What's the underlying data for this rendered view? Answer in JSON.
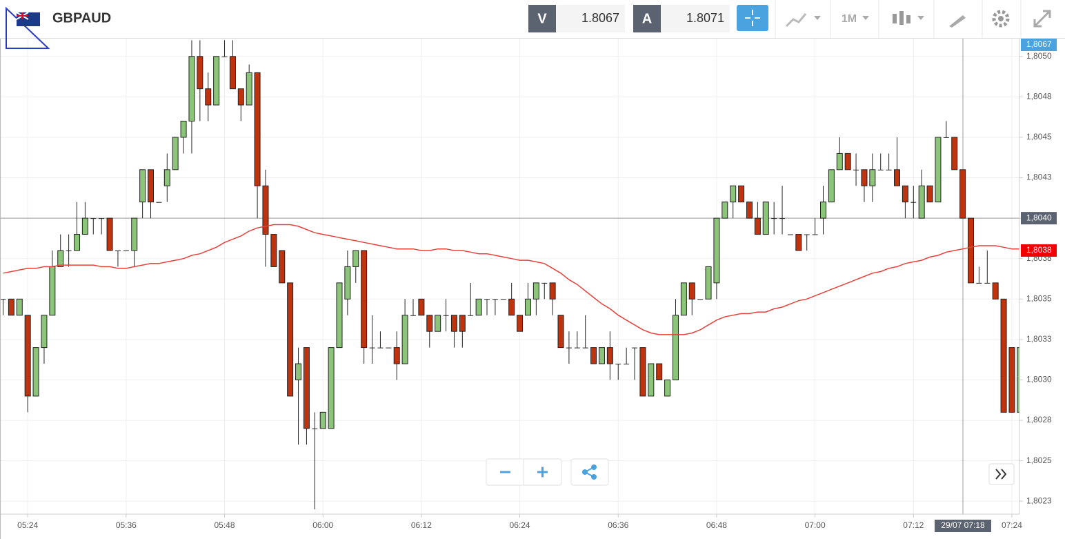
{
  "header": {
    "symbol": "GBPAUD",
    "bid_label": "V",
    "bid": 1.8067,
    "ask_label": "A",
    "ask": 1.8071,
    "timeframe": "1M"
  },
  "chart_data": {
    "type": "candlestick",
    "up_color": "#8cc47a",
    "down_color": "#c0330f",
    "categories": [
      null,
      null,
      null,
      "05:24",
      null,
      null,
      null,
      null,
      null,
      null,
      null,
      null,
      null,
      null,
      null,
      "05:36",
      null,
      null,
      null,
      null,
      null,
      null,
      null,
      null,
      null,
      null,
      null,
      "05:48",
      null,
      null,
      null,
      null,
      null,
      null,
      null,
      null,
      null,
      null,
      null,
      "06:00",
      null,
      null,
      null,
      null,
      null,
      null,
      null,
      null,
      null,
      null,
      null,
      "06:12",
      null,
      null,
      null,
      null,
      null,
      null,
      null,
      null,
      null,
      null,
      null,
      "06:24",
      null,
      null,
      null,
      null,
      null,
      null,
      null,
      null,
      null,
      null,
      null,
      "06:36",
      null,
      null,
      null,
      null,
      null,
      null,
      null,
      null,
      null,
      null,
      null,
      "06:48",
      null,
      null,
      null,
      null,
      null,
      null,
      null,
      null,
      null,
      null,
      null,
      "07:00",
      null,
      null,
      null,
      null,
      null,
      null,
      null,
      null,
      null,
      null,
      null,
      "07:12",
      null,
      null,
      null,
      null,
      null,
      null,
      null,
      null,
      null,
      null,
      null,
      "07:24",
      null
    ],
    "open": [
      1.8035,
      1.8035,
      1.8034,
      1.8034,
      1.8029,
      1.8032,
      1.8034,
      1.8037,
      1.8038,
      1.8038,
      1.8039,
      1.804,
      1.804,
      1.804,
      1.8038,
      1.8038,
      1.8038,
      1.8041,
      1.8043,
      1.8041,
      1.8042,
      1.8043,
      1.8045,
      1.8046,
      1.805,
      1.8048,
      1.8047,
      1.805,
      1.805,
      1.8048,
      1.8047,
      1.8049,
      1.8042,
      1.8039,
      1.8038,
      1.8036,
      1.803,
      1.8032,
      1.8027,
      1.8027,
      1.8027,
      1.8032,
      1.8035,
      1.8037,
      1.8038,
      1.8032,
      1.8032,
      1.8032,
      1.8032,
      1.8031,
      1.8034,
      1.8035,
      1.8034,
      1.8033,
      1.8034,
      1.8034,
      1.8034,
      1.8034,
      1.8034,
      1.8035,
      1.8035,
      1.8035,
      1.8035,
      1.8034,
      1.8034,
      1.8035,
      1.8036,
      1.8036,
      1.8034,
      1.8032,
      1.8032,
      1.8032,
      1.8032,
      1.8031,
      1.8032,
      1.8031,
      1.8031,
      1.8032,
      1.8032,
      1.8029,
      1.8031,
      1.8029,
      1.803,
      1.8034,
      1.8036,
      1.8035,
      1.8035,
      1.8036,
      1.804,
      1.8041,
      1.8042,
      1.8041,
      1.804,
      1.8039,
      1.804,
      1.804,
      1.8039,
      1.8039,
      1.8039,
      1.8039,
      1.804,
      1.8041,
      1.8043,
      1.8044,
      1.8043,
      1.8043,
      1.8042,
      1.8043,
      1.8043,
      1.8043,
      1.8042,
      1.8041,
      1.804,
      1.8042,
      1.8041,
      1.8045,
      1.8045,
      1.8043,
      1.804,
      1.8036,
      1.8036,
      1.8036,
      1.8035,
      1.8032,
      1.8028
    ],
    "high": [
      1.8035,
      1.8035,
      1.8035,
      1.8034,
      1.8032,
      1.8034,
      1.8038,
      1.8039,
      1.8039,
      1.8041,
      1.8041,
      1.804,
      1.804,
      1.804,
      1.8038,
      1.8038,
      1.804,
      1.8043,
      1.8043,
      1.8041,
      1.8044,
      1.8045,
      1.8046,
      1.8051,
      1.8051,
      1.8049,
      1.805,
      1.8051,
      1.8051,
      1.8048,
      1.80495,
      1.8049,
      1.8043,
      1.8039,
      1.8038,
      1.8036,
      1.8032,
      1.8032,
      1.8028,
      1.8028,
      1.8032,
      1.8036,
      1.8038,
      1.8038,
      1.8038,
      1.8034,
      1.8033,
      1.8032,
      1.8033,
      1.8035,
      1.8035,
      1.8035,
      1.8034,
      1.8034,
      1.8035,
      1.8034,
      1.8034,
      1.8036,
      1.8035,
      1.8035,
      1.8035,
      1.8035,
      1.8036,
      1.8034,
      1.8036,
      1.8036,
      1.8036,
      1.8036,
      1.8034,
      1.8033,
      1.8033,
      1.8034,
      1.8032,
      1.8032,
      1.8033,
      1.8031,
      1.8032,
      1.8032,
      1.8032,
      1.8031,
      1.8031,
      1.803,
      1.8035,
      1.8036,
      1.8036,
      1.8035,
      1.8037,
      1.804,
      1.8041,
      1.8042,
      1.8042,
      1.8041,
      1.8041,
      1.8041,
      1.8041,
      1.8042,
      1.8039,
      1.8039,
      1.8039,
      1.804,
      1.8042,
      1.8043,
      1.8045,
      1.8044,
      1.8044,
      1.8043,
      1.8044,
      1.8044,
      1.8044,
      1.8045,
      1.8042,
      1.8042,
      1.8043,
      1.8042,
      1.8045,
      1.8046,
      1.8045,
      1.8043,
      1.804,
      1.8037,
      1.8038,
      1.8036,
      1.8035,
      1.8032,
      1.8032
    ],
    "low": [
      1.8034,
      1.8034,
      1.8034,
      1.8028,
      1.8029,
      1.8031,
      1.8034,
      1.8037,
      1.8037,
      1.8038,
      1.8039,
      1.8039,
      1.8039,
      1.8038,
      1.8037,
      1.8038,
      1.8037,
      1.804,
      1.804,
      1.8041,
      1.8041,
      1.8043,
      1.8044,
      1.8044,
      1.8046,
      1.8046,
      1.8047,
      1.805,
      1.8048,
      1.8046,
      1.8047,
      1.804,
      1.8037,
      1.8037,
      1.8036,
      1.8029,
      1.8026,
      1.8026,
      1.8022,
      1.8027,
      1.8027,
      1.8032,
      1.8034,
      1.8036,
      1.8031,
      1.8031,
      1.8032,
      1.8032,
      1.803,
      1.8031,
      1.8034,
      1.8034,
      1.8032,
      1.8033,
      1.8033,
      1.8032,
      1.8032,
      1.8034,
      1.8034,
      1.8034,
      1.8034,
      1.8035,
      1.8034,
      1.8033,
      1.8034,
      1.8034,
      1.8035,
      1.8034,
      1.8032,
      1.8031,
      1.8032,
      1.8032,
      1.8031,
      1.8031,
      1.803,
      1.803,
      1.8031,
      1.803,
      1.8029,
      1.8029,
      1.803,
      1.8029,
      1.803,
      1.8034,
      1.8034,
      1.8035,
      1.8035,
      1.8035,
      1.804,
      1.804,
      1.8041,
      1.804,
      1.8039,
      1.8039,
      1.8039,
      1.8039,
      1.8039,
      1.8038,
      1.8038,
      1.8039,
      1.8039,
      1.8041,
      1.8043,
      1.8043,
      1.8042,
      1.8041,
      1.8041,
      1.8043,
      1.8043,
      1.8042,
      1.804,
      1.804,
      1.804,
      1.8041,
      1.8041,
      1.8045,
      1.8043,
      1.804,
      1.8036,
      1.8036,
      1.8036,
      1.8035,
      1.8028,
      1.8028,
      1.8028
    ],
    "close": [
      1.8035,
      1.8034,
      1.8035,
      1.8029,
      1.8032,
      1.8034,
      1.8037,
      1.8038,
      1.8038,
      1.8039,
      1.804,
      1.804,
      1.804,
      1.8038,
      1.8038,
      1.8038,
      1.804,
      1.8043,
      1.8041,
      1.8041,
      1.8043,
      1.8045,
      1.8046,
      1.805,
      1.8048,
      1.8047,
      1.805,
      1.805,
      1.8048,
      1.8047,
      1.8049,
      1.8042,
      1.8039,
      1.8037,
      1.8036,
      1.8029,
      1.8031,
      1.8027,
      1.8027,
      1.8028,
      1.8032,
      1.8036,
      1.8037,
      1.8038,
      1.8032,
      1.8032,
      1.8032,
      1.8032,
      1.8031,
      1.8034,
      1.8034,
      1.8034,
      1.8033,
      1.8034,
      1.8034,
      1.8033,
      1.8033,
      1.8034,
      1.8035,
      1.8035,
      1.8035,
      1.8035,
      1.8034,
      1.8033,
      1.8035,
      1.8036,
      1.8036,
      1.8035,
      1.8032,
      1.8032,
      1.8032,
      1.8032,
      1.8031,
      1.8032,
      1.8031,
      1.8031,
      1.8031,
      1.8032,
      1.8029,
      1.8031,
      1.803,
      1.803,
      1.8034,
      1.8036,
      1.8035,
      1.8035,
      1.8037,
      1.804,
      1.8041,
      1.8042,
      1.8041,
      1.804,
      1.8039,
      1.8041,
      1.804,
      1.804,
      1.8039,
      1.8038,
      1.8039,
      1.8039,
      1.8041,
      1.8043,
      1.8044,
      1.8043,
      1.8043,
      1.8042,
      1.8043,
      1.8043,
      1.8043,
      1.8042,
      1.8041,
      1.8041,
      1.8042,
      1.8041,
      1.8045,
      1.8045,
      1.8043,
      1.804,
      1.8036,
      1.8036,
      1.8036,
      1.8035,
      1.8028,
      1.8028,
      1.8032
    ],
    "ma": {
      "color": "#e8413c",
      "values": [
        1.80366,
        1.80367,
        1.80368,
        1.80369,
        1.80369,
        1.8037,
        1.8037,
        1.80371,
        1.80371,
        1.80371,
        1.80371,
        1.80371,
        1.8037,
        1.8037,
        1.80369,
        1.80369,
        1.8037,
        1.80371,
        1.80372,
        1.80372,
        1.80373,
        1.80374,
        1.80375,
        1.80377,
        1.80378,
        1.8038,
        1.80382,
        1.80385,
        1.80387,
        1.80389,
        1.80392,
        1.80394,
        1.80395,
        1.80396,
        1.80396,
        1.80396,
        1.80395,
        1.80393,
        1.80391,
        1.8039,
        1.80389,
        1.80388,
        1.80387,
        1.80386,
        1.80385,
        1.80384,
        1.80383,
        1.80382,
        1.80381,
        1.80381,
        1.80381,
        1.8038,
        1.8038,
        1.80381,
        1.80381,
        1.8038,
        1.8038,
        1.80379,
        1.80378,
        1.80378,
        1.80377,
        1.80376,
        1.80375,
        1.80374,
        1.80374,
        1.80373,
        1.80372,
        1.80369,
        1.80366,
        1.80362,
        1.80359,
        1.80355,
        1.80351,
        1.80347,
        1.80344,
        1.8034,
        1.80337,
        1.80334,
        1.80331,
        1.80329,
        1.80328,
        1.80328,
        1.80328,
        1.80328,
        1.80329,
        1.80331,
        1.80334,
        1.80337,
        1.80339,
        1.8034,
        1.80341,
        1.80341,
        1.80342,
        1.80342,
        1.80344,
        1.80345,
        1.80347,
        1.80349,
        1.8035,
        1.80352,
        1.80354,
        1.80356,
        1.80358,
        1.8036,
        1.80362,
        1.80364,
        1.80366,
        1.80367,
        1.80369,
        1.8037,
        1.80372,
        1.80373,
        1.80374,
        1.80376,
        1.80377,
        1.80379,
        1.8038,
        1.80381,
        1.80382,
        1.80383,
        1.80383,
        1.80383,
        1.80382,
        1.80381,
        1.80381
      ]
    },
    "ylim": [
      1.80217,
      1.80511
    ],
    "yticks": [
      {
        "value": 1.805,
        "label": "1,8050"
      },
      {
        "value": 1.80475,
        "label": "1,8048"
      },
      {
        "value": 1.8045,
        "label": "1,8045"
      },
      {
        "value": 1.80425,
        "label": "1,8043"
      },
      {
        "value": 1.804,
        "label": "1,8040"
      },
      {
        "value": 1.80375,
        "label": "1,8038"
      },
      {
        "value": 1.8035,
        "label": "1,8035"
      },
      {
        "value": 1.80325,
        "label": "1,8033"
      },
      {
        "value": 1.803,
        "label": "1,8030"
      },
      {
        "value": 1.80275,
        "label": "1,8028"
      },
      {
        "value": 1.8025,
        "label": "1,8025"
      },
      {
        "value": 1.80225,
        "label": "1,8023"
      }
    ],
    "grid": true,
    "last_price": {
      "value": 1.8067,
      "label": "1,8067",
      "color": "#4aa3df"
    },
    "ma_tag": {
      "value": 1.8038,
      "label": "1,8038",
      "color": "#f00000"
    },
    "cursor": {
      "value": 1.804,
      "label": "1,8040",
      "time_label": "29/07 07:18",
      "color": "#5b6270"
    }
  }
}
